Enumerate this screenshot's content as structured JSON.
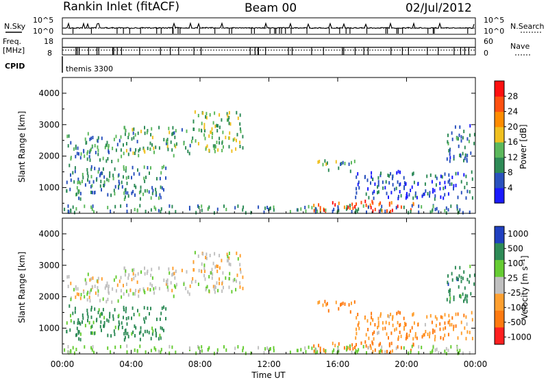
{
  "header": {
    "station": "Rankin Inlet (fitACF)",
    "beam": "Beam 00",
    "date": "02/Jul/2012"
  },
  "top_panels": {
    "nsky_label": "N.Sky",
    "nsky_ticks": [
      "10^5",
      "10^0"
    ],
    "nsearch_label": "N.Search",
    "freq_label_1": "Freq.",
    "freq_label_2": "[MHz]",
    "freq_ticks": [
      "18",
      "8"
    ],
    "nave_label": "Nave",
    "nave_ticks": [
      "60",
      "0"
    ],
    "cpid_label": "CPID",
    "cpid_value": "themis 3300"
  },
  "chart_data": [
    {
      "type": "heatmap",
      "name": "power",
      "ylabel": "Slant Range [km]",
      "ylim": [
        180,
        4500
      ],
      "yticks": [
        1000,
        2000,
        3000,
        4000
      ],
      "xlim": [
        0,
        24
      ],
      "colorbar_label": "Power [dB]",
      "colorbar_ticks": [
        "4",
        "8",
        "12",
        "16",
        "20",
        "24",
        "28"
      ],
      "colorbar_colors": [
        "#1a1aff",
        "#2a52be",
        "#2e8b57",
        "#5cb85c",
        "#f0c020",
        "#ff8c00",
        "#ff5010",
        "#ff1010"
      ],
      "blobs": [
        {
          "t": [
            0.1,
            3.5
          ],
          "r": [
            1800,
            2700
          ],
          "v": 10
        },
        {
          "t": [
            3.5,
            7.5
          ],
          "r": [
            2000,
            2900
          ],
          "v": 12
        },
        {
          "t": [
            7.5,
            10.5
          ],
          "r": [
            2100,
            3400
          ],
          "v": 14
        },
        {
          "t": [
            14.8,
            17.0
          ],
          "r": [
            1500,
            1850
          ],
          "v": 12
        },
        {
          "t": [
            17.0,
            23.8
          ],
          "r": [
            600,
            1500
          ],
          "v": 6
        },
        {
          "t": [
            14.5,
            20.5
          ],
          "r": [
            220,
            560
          ],
          "v": 26
        },
        {
          "t": [
            22.3,
            24.0
          ],
          "r": [
            1800,
            3000
          ],
          "v": 8
        },
        {
          "t": [
            0.0,
            24.0
          ],
          "r": [
            180,
            420
          ],
          "v": 10
        },
        {
          "t": [
            0.2,
            6.0
          ],
          "r": [
            600,
            1700
          ],
          "v": 9
        }
      ]
    },
    {
      "type": "heatmap",
      "name": "velocity",
      "ylabel": "Slant Range [km]",
      "xlabel": "Time UT",
      "ylim": [
        180,
        4500
      ],
      "yticks": [
        1000,
        2000,
        3000,
        4000
      ],
      "xlim": [
        0,
        24
      ],
      "xticks": [
        "00:00",
        "04:00",
        "08:00",
        "12:00",
        "16:00",
        "20:00",
        "00:00"
      ],
      "colorbar_label": "Velocity [m s⁻¹]",
      "colorbar_ticks": [
        "1000",
        "500",
        "100",
        "25",
        "-25",
        "-100",
        "-500",
        "-1000"
      ],
      "colorbar_colors": [
        "#2040c0",
        "#2e8b57",
        "#66cc33",
        "#c0c0c0",
        "#ffa030",
        "#ff7a10",
        "#ff2020"
      ],
      "blobs": [
        {
          "t": [
            0.1,
            3.5
          ],
          "r": [
            1800,
            2700
          ],
          "v": 0
        },
        {
          "t": [
            3.5,
            7.5
          ],
          "r": [
            2000,
            2900
          ],
          "v": 0
        },
        {
          "t": [
            7.5,
            10.5
          ],
          "r": [
            2100,
            3400
          ],
          "v": 0
        },
        {
          "t": [
            14.8,
            17.0
          ],
          "r": [
            1500,
            1850
          ],
          "v": -150
        },
        {
          "t": [
            17.0,
            23.8
          ],
          "r": [
            600,
            1500
          ],
          "v": -80
        },
        {
          "t": [
            14.5,
            20.5
          ],
          "r": [
            220,
            560
          ],
          "v": -200
        },
        {
          "t": [
            22.3,
            24.0
          ],
          "r": [
            1800,
            3000
          ],
          "v": 300
        },
        {
          "t": [
            0.0,
            24.0
          ],
          "r": [
            180,
            420
          ],
          "v": 50
        },
        {
          "t": [
            0.2,
            6.0
          ],
          "r": [
            600,
            1700
          ],
          "v": 200
        }
      ]
    }
  ]
}
